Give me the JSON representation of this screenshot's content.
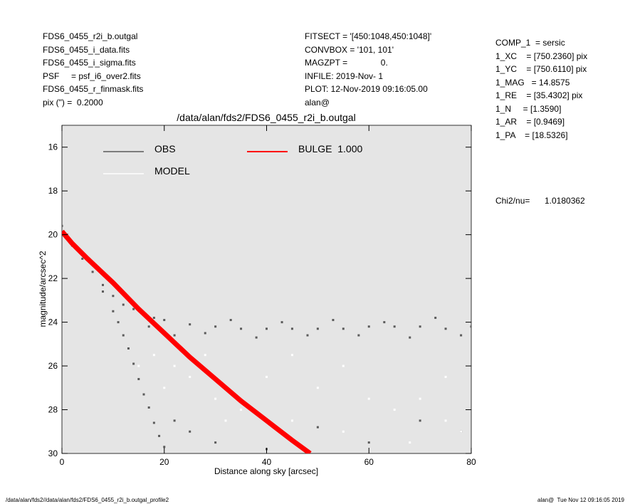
{
  "header": {
    "left": [
      "FDS6_0455_r2i_b.outgal",
      "FDS6_0455_i_data.fits",
      "FDS6_0455_i_sigma.fits",
      "PSF     = psf_i6_over2.fits",
      "FDS6_0455_r_finmask.fits",
      "pix (\") =  0.2000"
    ],
    "middle": [
      "FITSECT = '[450:1048,450:1048]'",
      "CONVBOX = '101, 101'",
      "MAGZPT =              0.",
      "INFILE: 2019-Nov- 1",
      "PLOT: 12-Nov-2019 09:16:05.00",
      "alan@"
    ],
    "right": [
      "COMP_1  = sersic",
      "1_XC    = [750.2360] pix",
      "1_YC    = [750.6110] pix",
      "1_MAG   = 14.8575",
      "1_RE    = [35.4302] pix",
      "1_N     = [1.3590]",
      "1_AR    = [0.9469]",
      "1_PA    = [18.5326]"
    ],
    "chi_label": "Chi2/nu=",
    "chi_value": "1.0180362"
  },
  "footer": {
    "left": "/data/alan/fds2//data/alan/fds2/FDS6_0455_r2i_b.outgal_profile2",
    "right": "alan@  Tue Nov 12 09:16:05 2019"
  },
  "chart_data": {
    "type": "scatter",
    "title": "/data/alan/fds2/FDS6_0455_r2i_b.outgal",
    "x_label": "Distance along sky [arcsec]",
    "y_label": "magnitude/arcsec^2",
    "xlim": [
      0,
      80
    ],
    "ylim": [
      30,
      15
    ],
    "xticks": [
      0,
      20,
      40,
      60,
      80
    ],
    "yticks": [
      16,
      18,
      20,
      22,
      24,
      26,
      28,
      30
    ],
    "legend": "upper-left",
    "series": [
      {
        "name": "OBS",
        "color": "#5a5a5a",
        "kind": "points",
        "x": [
          0,
          1,
          2,
          4,
          6,
          8,
          10,
          12,
          14,
          16,
          18,
          20,
          25,
          30,
          35,
          40,
          45,
          50,
          55,
          60,
          65,
          70,
          75,
          80,
          17,
          22,
          28,
          33,
          38,
          43,
          48,
          53,
          58,
          63,
          68,
          73,
          78,
          8,
          10,
          11,
          12,
          13,
          14,
          15,
          16,
          17,
          18,
          19,
          20,
          22,
          25,
          30,
          40,
          50,
          60,
          70,
          78
        ],
        "y": [
          19.6,
          20.0,
          20.5,
          21.1,
          21.7,
          22.3,
          22.8,
          23.2,
          23.4,
          23.6,
          23.8,
          23.9,
          24.1,
          24.2,
          24.3,
          24.3,
          24.3,
          24.3,
          24.3,
          24.2,
          24.2,
          24.2,
          24.3,
          24.2,
          24.2,
          24.6,
          24.5,
          23.9,
          24.7,
          24.0,
          24.6,
          23.9,
          24.6,
          24.0,
          24.7,
          23.8,
          24.6,
          22.6,
          23.5,
          24.0,
          24.6,
          25.2,
          25.9,
          26.6,
          27.3,
          27.9,
          28.6,
          29.2,
          29.7,
          28.5,
          29.0,
          29.5,
          29.8,
          28.8,
          29.5,
          28.5,
          29.0
        ]
      },
      {
        "name": "BULGE  1.000",
        "color": "#ff0000",
        "kind": "line",
        "x": [
          0,
          2,
          5,
          10,
          15,
          20,
          25,
          30,
          35,
          40,
          45,
          48.5
        ],
        "y": [
          19.85,
          20.4,
          21.1,
          22.2,
          23.4,
          24.5,
          25.6,
          26.6,
          27.6,
          28.5,
          29.4,
          30.0
        ]
      },
      {
        "name": "MODEL",
        "color": "#ffffff",
        "kind": "points",
        "x": [
          15,
          18,
          20,
          22,
          25,
          28,
          30,
          32,
          35,
          40,
          45,
          45,
          50,
          55,
          55,
          60,
          65,
          68,
          70,
          75,
          75,
          78
        ],
        "y": [
          26.0,
          25.5,
          27.0,
          26.0,
          26.5,
          25.5,
          27.5,
          28.5,
          28.0,
          26.5,
          28.5,
          25.5,
          27.0,
          29.0,
          26.0,
          27.5,
          28.0,
          29.5,
          27.5,
          28.5,
          26.5,
          29.0
        ]
      }
    ]
  }
}
